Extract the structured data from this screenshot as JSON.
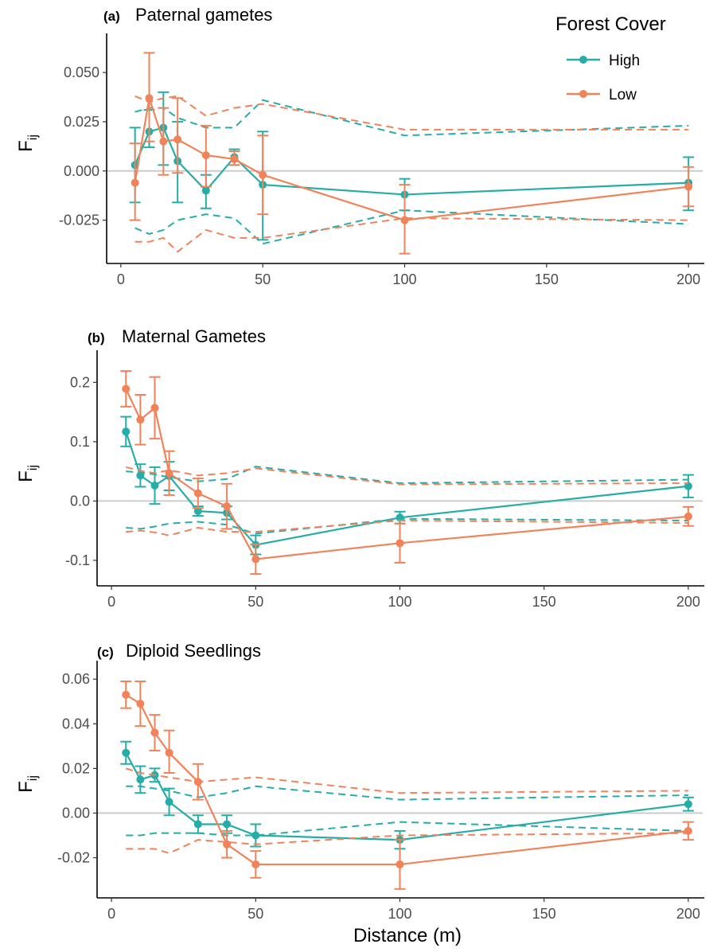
{
  "colors": {
    "high": "#26ADA7",
    "low": "#F0835A",
    "zero_line": "#cccccc",
    "axis": "#000000"
  },
  "legend": {
    "title": "Forest Cover",
    "items": [
      {
        "label": "High",
        "color": "#26ADA7"
      },
      {
        "label": "Low",
        "color": "#F0835A"
      }
    ]
  },
  "x_axis_label": "Distance (m)",
  "chart_data": [
    {
      "panel": "(a)",
      "title": "Paternal gametes",
      "type": "line",
      "ylabel": "F",
      "ylabel_sub": "ij",
      "xlim": [
        -5,
        205
      ],
      "ylim": [
        -0.047,
        0.065
      ],
      "x_ticks": [
        0,
        50,
        100,
        150,
        200
      ],
      "y_ticks": [
        -0.025,
        0.0,
        0.025,
        0.05
      ],
      "y_tick_labels": [
        "-0.025",
        "0.000",
        "0.025",
        "0.050"
      ],
      "x": [
        5,
        10,
        15,
        20,
        30,
        40,
        50,
        100,
        200
      ],
      "series": [
        {
          "name": "High",
          "color": "#26ADA7",
          "values": [
            0.003,
            0.02,
            0.022,
            0.005,
            -0.01,
            0.007,
            -0.007,
            -0.012,
            -0.006
          ],
          "err_low": [
            -0.016,
            0.012,
            0.003,
            -0.016,
            -0.019,
            0.003,
            -0.035,
            -0.02,
            -0.02
          ],
          "err_high": [
            0.022,
            0.031,
            0.04,
            0.025,
            -0.002,
            0.011,
            0.02,
            -0.004,
            0.007
          ],
          "envelope_upper": [
            0.03,
            0.032,
            0.032,
            0.027,
            0.022,
            0.022,
            0.036,
            0.018,
            0.023
          ],
          "envelope_lower": [
            -0.029,
            -0.032,
            -0.03,
            -0.025,
            -0.022,
            -0.024,
            -0.037,
            -0.02,
            -0.027
          ]
        },
        {
          "name": "Low",
          "color": "#F0835A",
          "values": [
            -0.006,
            0.037,
            0.015,
            0.016,
            0.008,
            0.006,
            -0.002,
            -0.025,
            -0.008
          ],
          "err_low": [
            -0.025,
            0.015,
            -0.002,
            -0.001,
            -0.008,
            0.003,
            -0.022,
            -0.042,
            -0.018
          ],
          "err_high": [
            0.014,
            0.06,
            0.032,
            0.037,
            0.023,
            0.01,
            0.018,
            -0.007,
            0.002
          ],
          "envelope_upper": [
            0.038,
            0.035,
            0.037,
            0.038,
            0.028,
            0.032,
            0.034,
            0.021,
            0.021
          ],
          "envelope_lower": [
            -0.036,
            -0.036,
            -0.034,
            -0.041,
            -0.03,
            -0.034,
            -0.034,
            -0.024,
            -0.025
          ]
        }
      ]
    },
    {
      "panel": "(b)",
      "title": "Maternal Gametes",
      "type": "line",
      "ylabel": "F",
      "ylabel_sub": "ij",
      "xlim": [
        -5,
        205
      ],
      "ylim": [
        -0.143,
        0.238
      ],
      "x_ticks": [
        0,
        50,
        100,
        150,
        200
      ],
      "y_ticks": [
        -0.1,
        0.0,
        0.1,
        0.2
      ],
      "y_tick_labels": [
        "-0.1",
        "0.0",
        "0.1",
        "0.2"
      ],
      "x": [
        5,
        10,
        15,
        20,
        30,
        40,
        50,
        100,
        200
      ],
      "series": [
        {
          "name": "High",
          "color": "#26ADA7",
          "values": [
            0.117,
            0.043,
            0.026,
            0.042,
            -0.017,
            -0.02,
            -0.074,
            -0.028,
            0.025
          ],
          "err_low": [
            0.092,
            0.024,
            -0.005,
            0.018,
            -0.025,
            -0.031,
            -0.09,
            -0.038,
            0.006
          ],
          "err_high": [
            0.142,
            0.062,
            0.057,
            0.066,
            -0.009,
            -0.009,
            -0.058,
            -0.018,
            0.044
          ],
          "envelope_upper": [
            0.05,
            0.048,
            0.045,
            0.04,
            0.033,
            0.037,
            0.058,
            0.03,
            0.036
          ],
          "envelope_lower": [
            -0.045,
            -0.047,
            -0.043,
            -0.038,
            -0.035,
            -0.04,
            -0.055,
            -0.03,
            -0.033
          ]
        },
        {
          "name": "Low",
          "color": "#F0835A",
          "values": [
            0.189,
            0.137,
            0.157,
            0.047,
            0.013,
            -0.009,
            -0.098,
            -0.071,
            -0.026
          ],
          "err_low": [
            0.159,
            0.095,
            0.105,
            0.01,
            -0.012,
            -0.047,
            -0.123,
            -0.104,
            -0.042
          ],
          "err_high": [
            0.219,
            0.179,
            0.209,
            0.084,
            0.038,
            0.029,
            -0.073,
            -0.038,
            -0.01
          ],
          "envelope_upper": [
            0.057,
            0.051,
            0.047,
            0.052,
            0.043,
            0.047,
            0.055,
            0.028,
            0.03
          ],
          "envelope_lower": [
            -0.052,
            -0.05,
            -0.053,
            -0.058,
            -0.045,
            -0.052,
            -0.052,
            -0.033,
            -0.037
          ]
        }
      ]
    },
    {
      "panel": "(c)",
      "title": "Diploid Seedlings",
      "type": "line",
      "ylabel": "F",
      "ylabel_sub": "ij",
      "xlim": [
        -5,
        205
      ],
      "ylim": [
        -0.038,
        0.064
      ],
      "x_ticks": [
        0,
        50,
        100,
        150,
        200
      ],
      "y_ticks": [
        -0.02,
        0.0,
        0.02,
        0.04,
        0.06
      ],
      "y_tick_labels": [
        "-0.02",
        "0.00",
        "0.02",
        "0.04",
        "0.06"
      ],
      "x": [
        5,
        10,
        15,
        20,
        30,
        40,
        50,
        100,
        200
      ],
      "series": [
        {
          "name": "High",
          "color": "#26ADA7",
          "values": [
            0.027,
            0.015,
            0.017,
            0.005,
            -0.005,
            -0.005,
            -0.01,
            -0.012,
            0.004
          ],
          "err_low": [
            0.022,
            0.009,
            0.014,
            -0.001,
            -0.009,
            -0.009,
            -0.015,
            -0.016,
            0.001
          ],
          "err_high": [
            0.032,
            0.021,
            0.02,
            0.011,
            -0.001,
            -0.001,
            -0.005,
            -0.008,
            0.007
          ],
          "envelope_upper": [
            0.012,
            0.012,
            0.011,
            0.01,
            0.007,
            0.009,
            0.012,
            0.006,
            0.008
          ],
          "envelope_lower": [
            -0.01,
            -0.01,
            -0.009,
            -0.009,
            -0.009,
            -0.01,
            -0.01,
            -0.004,
            -0.008
          ]
        },
        {
          "name": "Low",
          "color": "#F0835A",
          "values": [
            0.053,
            0.049,
            0.036,
            0.027,
            0.014,
            -0.014,
            -0.023,
            -0.023,
            -0.008
          ],
          "err_low": [
            0.047,
            0.039,
            0.028,
            0.018,
            0.006,
            -0.02,
            -0.029,
            -0.034,
            -0.012
          ],
          "err_high": [
            0.059,
            0.059,
            0.044,
            0.037,
            0.022,
            -0.008,
            -0.017,
            -0.012,
            -0.004
          ],
          "envelope_upper": [
            0.02,
            0.018,
            0.017,
            0.016,
            0.014,
            0.015,
            0.016,
            0.009,
            0.01
          ],
          "envelope_lower": [
            -0.016,
            -0.016,
            -0.016,
            -0.018,
            -0.012,
            -0.013,
            -0.014,
            -0.01,
            -0.009
          ]
        }
      ]
    }
  ]
}
